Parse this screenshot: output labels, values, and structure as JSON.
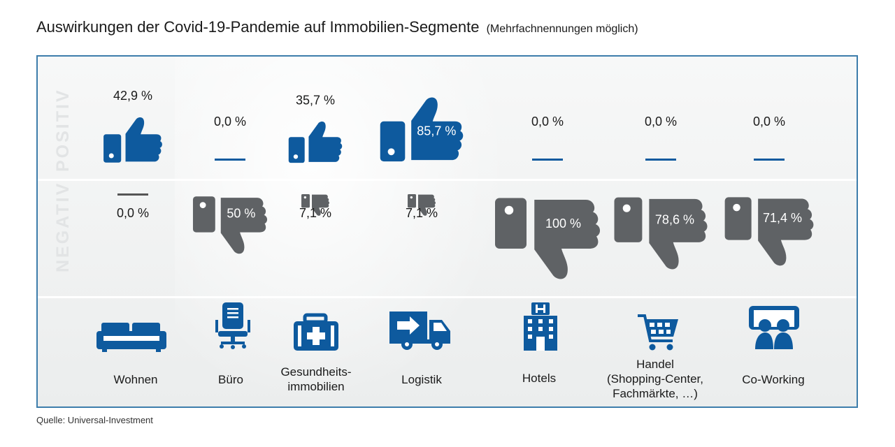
{
  "title": "Auswirkungen der Covid-19-Pandemie auf Immobilien-Segmente",
  "subtitle": "(Mehrfachnennungen möglich)",
  "row_labels": {
    "positive": "POSITIV",
    "negative": "NEGATIV"
  },
  "source": "Quelle: Universal-Investment",
  "colors": {
    "positive": "#0e5a9e",
    "negative": "#5f6265",
    "frame": "#3d7dab",
    "zero_dash_positive": "#0e5a9e",
    "zero_dash_negative": "#555555"
  },
  "chart_data": {
    "type": "bar",
    "title": "Auswirkungen der Covid-19-Pandemie auf Immobilien-Segmente",
    "subtitle": "(Mehrfachnennungen möglich)",
    "unit": "%",
    "categories": [
      "Wohnen",
      "Büro",
      "Gesundheitsimmobilien",
      "Logistik",
      "Hotels",
      "Handel (Shopping-Center, Fachmärkte, …)",
      "Co-Working"
    ],
    "category_labels": [
      [
        "Wohnen"
      ],
      [
        "Büro"
      ],
      [
        "Gesundheits-",
        "immobilien"
      ],
      [
        "Logistik"
      ],
      [
        "Hotels"
      ],
      [
        "Handel",
        "(Shopping-Center,",
        "Fachmärkte, …)"
      ],
      [
        "Co-Working"
      ]
    ],
    "category_icons": [
      "sofa-icon",
      "office-chair-icon",
      "first-aid-kit-icon",
      "delivery-truck-icon",
      "hotel-building-icon",
      "shopping-cart-icon",
      "coworking-people-icon"
    ],
    "series": [
      {
        "name": "POSITIV",
        "values": [
          42.9,
          0.0,
          35.7,
          85.7,
          0.0,
          0.0,
          0.0
        ],
        "labels": [
          "42,9 %",
          "0,0 %",
          "35,7 %",
          "85,7 %",
          "0,0 %",
          "0,0 %",
          "0,0 %"
        ]
      },
      {
        "name": "NEGATIV",
        "values": [
          0.0,
          50,
          7.1,
          7.1,
          100,
          78.6,
          71.4
        ],
        "labels": [
          "0,0 %",
          "50 %",
          "7,1 %",
          "7,1 %",
          "100 %",
          "78,6 %",
          "71,4 %"
        ]
      }
    ]
  }
}
